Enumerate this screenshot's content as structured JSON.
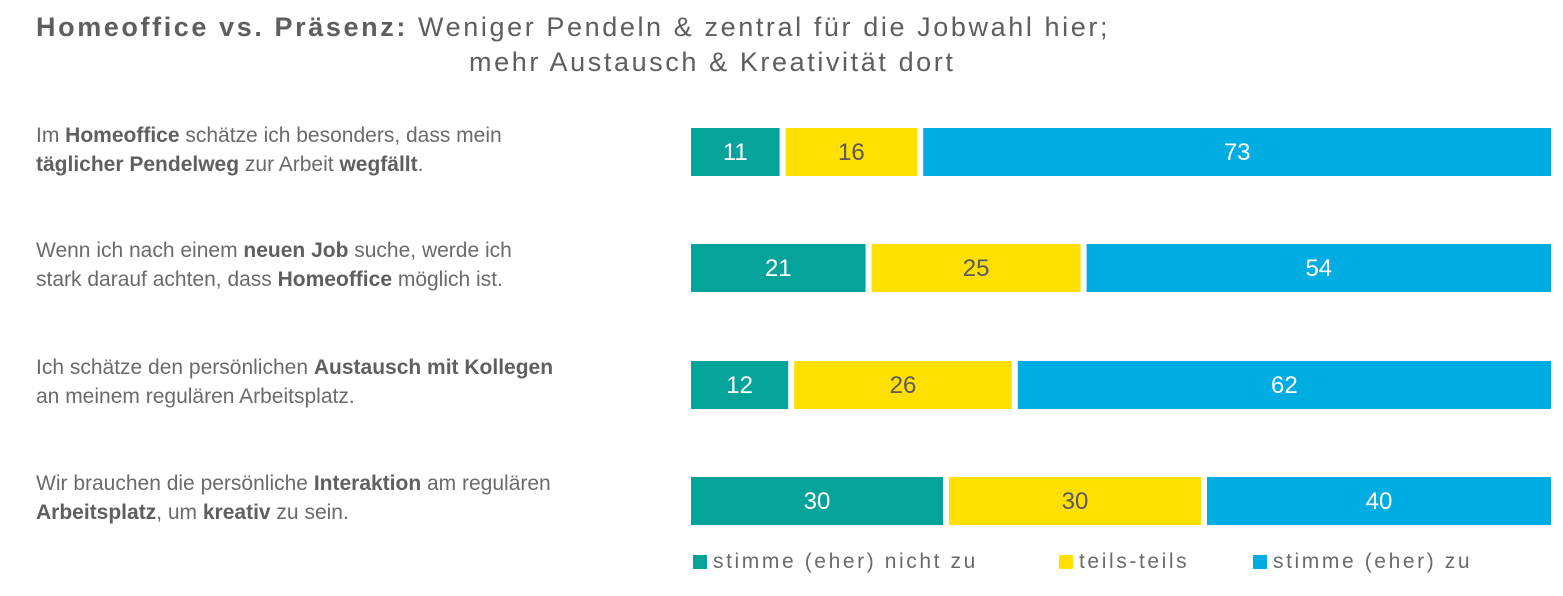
{
  "title": {
    "bold": "Homeoffice vs. Präsenz:",
    "line1": "Weniger Pendeln & zentral für die Jobwahl hier;",
    "line2": "mehr Austausch & Kreativität dort"
  },
  "statements": [
    [
      {
        "text": "Im ",
        "bold": false
      },
      {
        "text": "Homeoffice",
        "bold": true
      },
      {
        "text": " schätze ich besonders, dass mein",
        "bold": false
      },
      {
        "br": true
      },
      {
        "text": "täglicher Pendelweg",
        "bold": true
      },
      {
        "text": " zur Arbeit ",
        "bold": false
      },
      {
        "text": "wegfällt",
        "bold": true
      },
      {
        "text": ".",
        "bold": false
      }
    ],
    [
      {
        "text": "Wenn ich nach einem ",
        "bold": false
      },
      {
        "text": "neuen Job",
        "bold": true
      },
      {
        "text": " suche, werde ich",
        "bold": false
      },
      {
        "br": true
      },
      {
        "text": "stark darauf achten, dass ",
        "bold": false
      },
      {
        "text": "Homeoffice",
        "bold": true
      },
      {
        "text": " möglich ist.",
        "bold": false
      }
    ],
    [
      {
        "text": "Ich schätze den persönlichen ",
        "bold": false
      },
      {
        "text": "Austausch mit Kollegen",
        "bold": true
      },
      {
        "br": true
      },
      {
        "text": "an meinem regulären Arbeitsplatz.",
        "bold": false
      }
    ],
    [
      {
        "text": "Wir brauchen die persönliche ",
        "bold": false
      },
      {
        "text": "Interaktion",
        "bold": true
      },
      {
        "text": " am regulären",
        "bold": false
      },
      {
        "br": true
      },
      {
        "text": "Arbeitsplatz",
        "bold": true
      },
      {
        "text": ", um ",
        "bold": false
      },
      {
        "text": "kreativ",
        "bold": true
      },
      {
        "text": " zu sein.",
        "bold": false
      }
    ]
  ],
  "chart_data": {
    "type": "bar",
    "orientation": "horizontal",
    "stacked": true,
    "normalized_percent": true,
    "categories": [
      "Im Homeoffice schätze ich besonders, dass mein täglicher Pendelweg zur Arbeit wegfällt.",
      "Wenn ich nach einem neuen Job suche, werde ich stark darauf achten, dass Homeoffice möglich ist.",
      "Ich schätze den persönlichen Austausch mit Kollegen an meinem regulären Arbeitsplatz.",
      "Wir brauchen die persönliche Interaktion am regulären Arbeitsplatz, um kreativ zu sein."
    ],
    "series": [
      {
        "name": "stimme (eher) nicht zu",
        "color": "#06a39a",
        "label_color": "#ffffff",
        "values": [
          11,
          21,
          12,
          30
        ]
      },
      {
        "name": "teils-teils",
        "color": "#ffe000",
        "label_color": "#5a5a5a",
        "values": [
          16,
          25,
          26,
          30
        ]
      },
      {
        "name": "stimme (eher) zu",
        "color": "#00ade2",
        "label_color": "#ffffff",
        "values": [
          73,
          54,
          62,
          40
        ]
      }
    ],
    "legend_position": "bottom",
    "grid": false,
    "xlim": [
      0,
      100
    ]
  }
}
